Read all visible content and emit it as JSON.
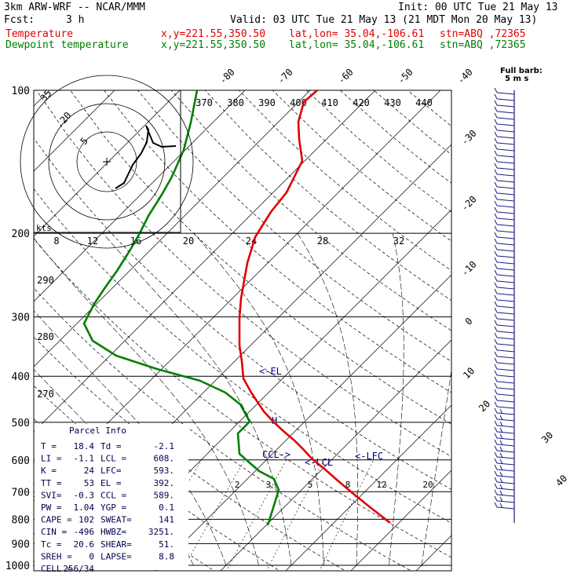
{
  "header": {
    "model": "3km ARW-WRF -- NCAR/MMM",
    "init": "Init: 00 UTC Tue 21 May 13",
    "fcst_label": "Fcst:",
    "fcst_value": "3 h",
    "valid": "Valid: 03 UTC Tue 21 May 13 (21 MDT Mon 20 May 13)"
  },
  "legend": [
    {
      "label": "Temperature",
      "coords": "x,y=221.55,350.50",
      "latlon": "lat,lon= 35.04,-106.61",
      "stn": "stn=ABQ ,72365",
      "color": "#e00000"
    },
    {
      "label": "Dewpoint temperature",
      "coords": "x,y=221.55,350.50",
      "latlon": "lat,lon= 35.04,-106.61",
      "stn": "stn=ABQ ,72365",
      "color": "#008000"
    }
  ],
  "barb_key": {
    "line1": "Full barb:",
    "line2": "5 m s"
  },
  "hodograph": {
    "speed_label": "kts",
    "ring_labels": [
      "5",
      "20",
      "35"
    ]
  },
  "parcel": {
    "title": "Parcel Info",
    "rows": [
      [
        "T  =",
        "18.4",
        "Td =",
        "-2.1"
      ],
      [
        "LI =",
        "-1.1",
        "LCL =",
        "608."
      ],
      [
        "K  =",
        "24",
        "LFC=",
        "593."
      ],
      [
        "TT =",
        "53",
        "EL =",
        "392."
      ],
      [
        "SVI=",
        "-0.3",
        "CCL =",
        "589."
      ],
      [
        "PW =",
        "1.04",
        "YGP =",
        "0.1"
      ],
      [
        "CAPE =",
        "102",
        "SWEAT=",
        "141"
      ],
      [
        "CIN =",
        "-496",
        "HWBZ=",
        "3251."
      ],
      [
        "Tc =",
        "20.6",
        "SHEAR=",
        "51."
      ],
      [
        "SREH =",
        "0",
        "LAPSE=",
        "8.8"
      ],
      [
        "CELL =",
        "256/34",
        "",
        ""
      ]
    ]
  },
  "chart_data": {
    "type": "line",
    "subtype": "skew-T log-p sounding",
    "pressure_axis": {
      "ticks": [
        100,
        200,
        300,
        400,
        500,
        600,
        700,
        800,
        900,
        1000
      ],
      "scale": "log",
      "range": [
        1000,
        100
      ]
    },
    "isotherm_labels_top": [
      "-80",
      "-70",
      "-60",
      "-50",
      "-40"
    ],
    "isotherm_labels_right": [
      "-30",
      "-20",
      "-10",
      "0",
      "10"
    ],
    "isotherm_labels_lower_right": [
      "20",
      "30",
      "40"
    ],
    "theta_labels": [
      "370",
      "380",
      "390",
      "400",
      "410",
      "420",
      "430",
      "440"
    ],
    "theta_labels_left": [
      "290",
      "280",
      "270"
    ],
    "mixing_ratio_labels_upper": [
      "8",
      "12",
      "16",
      "20",
      "24",
      "28",
      "32"
    ],
    "mixing_ratio_labels_lower": [
      "2",
      "3",
      "5",
      "8",
      "12",
      "20"
    ],
    "annotations": [
      "EL",
      "LCL",
      "LFC",
      "CCL",
      "H"
    ],
    "series": [
      {
        "name": "Temperature",
        "color": "#e00000",
        "x": [
          35.0,
          31.0,
          28.0,
          25.0,
          22.0,
          19.0,
          16.0,
          14.0,
          12.0,
          10.5,
          8.0,
          4.5,
          -1.0,
          -5.0,
          -9.0,
          -13.0,
          -18.0,
          -23.0,
          -28.0,
          -35.0,
          -40.0,
          -44.0,
          -49.0,
          -53.0
        ],
        "y": [
          840,
          800,
          760,
          720,
          680,
          640,
          600,
          560,
          520,
          500,
          460,
          420,
          380,
          360,
          330,
          300,
          270,
          240,
          210,
          180,
          160,
          140,
          120,
          100
        ]
      },
      {
        "name": "Dewpoint temperature",
        "color": "#008000",
        "x": [
          -2.1,
          -2.6,
          -3.0,
          -4.0,
          -7.0,
          -10.0,
          -14.5,
          -14.0,
          -16.0,
          -20.0,
          -30.0,
          -37.0,
          -44.0,
          -50.0,
          -54.0,
          -57.0,
          -58.0,
          -59.0,
          -62.0,
          -67.0,
          -72.0,
          -78.0,
          -85.0
        ],
        "y": [
          820,
          760,
          700,
          660,
          620,
          580,
          560,
          520,
          490,
          470,
          430,
          400,
          370,
          345,
          330,
          310,
          290,
          260,
          220,
          180,
          160,
          140,
          100
        ]
      }
    ]
  }
}
